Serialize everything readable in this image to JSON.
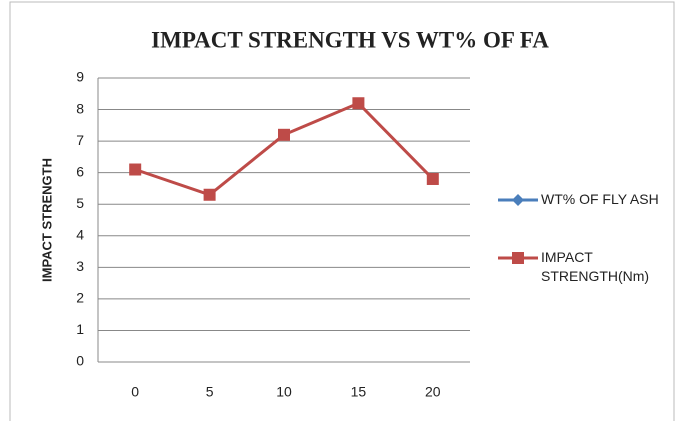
{
  "chart_data": {
    "type": "line",
    "title": "IMPACT STRENGTH VS WT% OF FA",
    "y_label": "IMPACT STRENGTH",
    "categories": [
      "0",
      "5",
      "10",
      "15",
      "20"
    ],
    "series": [
      {
        "name": "WT% OF FLY ASH",
        "color": "#4a7ebb",
        "marker": "diamond",
        "values": [
          null,
          null,
          null,
          null,
          null
        ]
      },
      {
        "name": "IMPACT STRENGTH(Nm)",
        "color": "#be4b48",
        "marker": "square",
        "values": [
          6.1,
          5.3,
          7.2,
          8.2,
          5.8
        ]
      }
    ],
    "ylim": [
      0,
      9
    ],
    "yticks": [
      0,
      1,
      2,
      3,
      4,
      5,
      6,
      7,
      8,
      9
    ],
    "grid": true,
    "legend": "right"
  }
}
